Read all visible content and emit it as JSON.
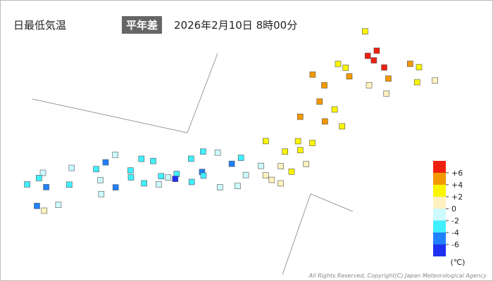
{
  "header": {
    "title": "日最低気温",
    "badge": "平年差",
    "datetime": "2026年2月10日 8時00分"
  },
  "legend": {
    "unit": "(℃)",
    "colors": [
      "#f02010",
      "#f39800",
      "#faf500",
      "#fff2c0",
      "#ccfaff",
      "#40f0ff",
      "#2080ff",
      "#2030f0"
    ],
    "ticks": [
      {
        "value": 6,
        "label": "+6"
      },
      {
        "value": 4,
        "label": "+4"
      },
      {
        "value": 2,
        "label": "+2"
      },
      0,
      -2,
      -4,
      -6
    ]
  },
  "stations": [
    {
      "lon": 141.7,
      "lat": 45.4,
      "value": 3.5
    },
    {
      "lon": 142.4,
      "lat": 44.4,
      "value": 6.5
    },
    {
      "lon": 142.1,
      "lat": 44.0,
      "value": 7.0
    },
    {
      "lon": 142.4,
      "lat": 43.8,
      "value": 6.8
    },
    {
      "lon": 142.9,
      "lat": 43.5,
      "value": 6.2
    },
    {
      "lon": 143.9,
      "lat": 44.0,
      "value": 4.5
    },
    {
      "lon": 144.3,
      "lat": 43.9,
      "value": 3.0
    },
    {
      "lon": 145.1,
      "lat": 43.3,
      "value": 1.0
    },
    {
      "lon": 144.4,
      "lat": 43.0,
      "value": 2.5
    },
    {
      "lon": 143.2,
      "lat": 42.9,
      "value": 5.0
    },
    {
      "lon": 141.35,
      "lat": 43.06,
      "value": 3.0
    },
    {
      "lon": 141.0,
      "lat": 43.2,
      "value": 2.5
    },
    {
      "lon": 141.6,
      "lat": 42.6,
      "value": 4.5
    },
    {
      "lon": 140.7,
      "lat": 41.8,
      "value": 5.5
    },
    {
      "lon": 140.1,
      "lat": 42.3,
      "value": 4.0
    },
    {
      "lon": 142.5,
      "lat": 42.3,
      "value": 1.5
    },
    {
      "lon": 143.3,
      "lat": 42.0,
      "value": 1.0
    },
    {
      "lon": 140.7,
      "lat": 40.8,
      "value": 4.5
    },
    {
      "lon": 141.4,
      "lat": 40.5,
      "value": 3.5
    },
    {
      "lon": 140.1,
      "lat": 39.7,
      "value": 4.0
    },
    {
      "lon": 141.15,
      "lat": 39.7,
      "value": 4.5
    },
    {
      "lon": 141.9,
      "lat": 39.6,
      "value": 3.0
    },
    {
      "lon": 140.3,
      "lat": 38.25,
      "value": 3.5
    },
    {
      "lon": 140.9,
      "lat": 38.3,
      "value": 3.0
    },
    {
      "lon": 140.5,
      "lat": 37.75,
      "value": 2.5
    },
    {
      "lon": 139.9,
      "lat": 37.5,
      "value": 3.5
    },
    {
      "lon": 139.0,
      "lat": 37.9,
      "value": 2.0
    },
    {
      "lon": 140.9,
      "lat": 37.0,
      "value": 1.5
    },
    {
      "lon": 139.9,
      "lat": 36.6,
      "value": 1.0
    },
    {
      "lon": 140.4,
      "lat": 36.4,
      "value": 2.5
    },
    {
      "lon": 139.1,
      "lat": 36.4,
      "value": -0.5
    },
    {
      "lon": 139.7,
      "lat": 35.7,
      "value": 0.5
    },
    {
      "lon": 140.1,
      "lat": 35.6,
      "value": 1.5
    },
    {
      "lon": 139.4,
      "lat": 35.9,
      "value": 0.5
    },
    {
      "lon": 138.2,
      "lat": 36.65,
      "value": -3.0
    },
    {
      "lon": 137.9,
      "lat": 36.2,
      "value": -4.5
    },
    {
      "lon": 138.6,
      "lat": 35.7,
      "value": -2.0
    },
    {
      "lon": 137.2,
      "lat": 36.7,
      "value": -1.5
    },
    {
      "lon": 136.6,
      "lat": 36.6,
      "value": -2.5
    },
    {
      "lon": 136.2,
      "lat": 36.05,
      "value": -3.5
    },
    {
      "lon": 136.8,
      "lat": 35.4,
      "value": -5.5
    },
    {
      "lon": 136.9,
      "lat": 35.2,
      "value": -2.5
    },
    {
      "lon": 138.4,
      "lat": 34.97,
      "value": -1.0
    },
    {
      "lon": 137.7,
      "lat": 34.7,
      "value": -2.0
    },
    {
      "lon": 136.5,
      "lat": 34.7,
      "value": -3.0
    },
    {
      "lon": 135.8,
      "lat": 35.0,
      "value": -3.5
    },
    {
      "lon": 135.5,
      "lat": 34.7,
      "value": -2.0
    },
    {
      "lon": 135.2,
      "lat": 34.7,
      "value": -2.5
    },
    {
      "lon": 135.8,
      "lat": 34.7,
      "value": -6.5
    },
    {
      "lon": 135.2,
      "lat": 34.2,
      "value": -1.5
    },
    {
      "lon": 134.7,
      "lat": 35.5,
      "value": -4.0
    },
    {
      "lon": 133.9,
      "lat": 34.7,
      "value": -3.0
    },
    {
      "lon": 134.2,
      "lat": 35.5,
      "value": -2.5
    },
    {
      "lon": 133.1,
      "lat": 35.45,
      "value": -2.0
    },
    {
      "lon": 132.5,
      "lat": 34.4,
      "value": -3.5
    },
    {
      "lon": 131.5,
      "lat": 34.2,
      "value": -2.0
    },
    {
      "lon": 132.8,
      "lat": 34.9,
      "value": -5.0
    },
    {
      "lon": 134.6,
      "lat": 34.1,
      "value": -2.5
    },
    {
      "lon": 134.0,
      "lat": 34.3,
      "value": -3.0
    },
    {
      "lon": 132.8,
      "lat": 33.8,
      "value": -1.0
    },
    {
      "lon": 133.5,
      "lat": 33.55,
      "value": -4.5
    },
    {
      "lon": 133.0,
      "lat": 33.0,
      "value": -1.5
    },
    {
      "lon": 130.4,
      "lat": 33.6,
      "value": -2.0
    },
    {
      "lon": 130.3,
      "lat": 33.25,
      "value": -3.0
    },
    {
      "lon": 129.9,
      "lat": 32.75,
      "value": -2.5
    },
    {
      "lon": 130.7,
      "lat": 32.8,
      "value": -4.5
    },
    {
      "lon": 131.6,
      "lat": 33.2,
      "value": -3.0
    },
    {
      "lon": 131.4,
      "lat": 31.9,
      "value": -2.0
    },
    {
      "lon": 130.55,
      "lat": 31.6,
      "value": -5.5
    },
    {
      "lon": 130.9,
      "lat": 31.4,
      "value": 0.5
    }
  ],
  "copyright": "All Rights Reserved, Copyright(C) Japan Meteorological Agency"
}
